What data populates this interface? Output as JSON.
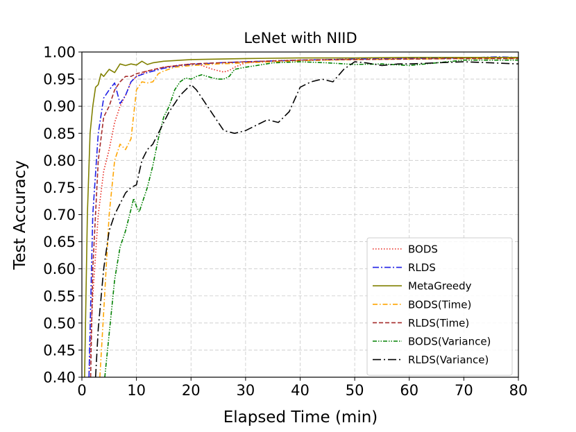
{
  "chart_data": {
    "type": "line",
    "title": "LeNet with NIID",
    "xlabel": "Elapsed Time (min)",
    "ylabel": "Test Accuracy",
    "xlim": [
      0,
      80
    ],
    "ylim": [
      0.4,
      1.0
    ],
    "xticks": [
      0,
      10,
      20,
      30,
      40,
      50,
      60,
      70,
      80
    ],
    "xtick_labels": [
      "0",
      "10",
      "20",
      "30",
      "40",
      "50",
      "60",
      "70",
      "80"
    ],
    "yticks": [
      0.4,
      0.45,
      0.5,
      0.55,
      0.6,
      0.65,
      0.7,
      0.75,
      0.8,
      0.85,
      0.9,
      0.95,
      1.0
    ],
    "ytick_labels": [
      "0.40",
      "0.45",
      "0.50",
      "0.55",
      "0.60",
      "0.65",
      "0.70",
      "0.75",
      "0.80",
      "0.85",
      "0.90",
      "0.95",
      "1.00"
    ],
    "grid": true,
    "legend_position": "bottom-right",
    "series": [
      {
        "name": "BODS",
        "color": "#e8231a",
        "dash": "1.5,2.5",
        "x": [
          1.3,
          2,
          3,
          4,
          5,
          6,
          7,
          8,
          9,
          10,
          12,
          15,
          18,
          20,
          22,
          24,
          26,
          27,
          28,
          30,
          35,
          40,
          45,
          50,
          55,
          60,
          65,
          70,
          75,
          80
        ],
        "y": [
          0.4,
          0.55,
          0.7,
          0.78,
          0.82,
          0.87,
          0.9,
          0.92,
          0.945,
          0.955,
          0.965,
          0.972,
          0.976,
          0.978,
          0.975,
          0.968,
          0.963,
          0.966,
          0.972,
          0.98,
          0.984,
          0.985,
          0.986,
          0.987,
          0.988,
          0.988,
          0.988,
          0.989,
          0.989,
          0.989
        ]
      },
      {
        "name": "RLDS",
        "color": "#1f1fe6",
        "dash": "9,3,2,3",
        "x": [
          1.3,
          2,
          3,
          4,
          5,
          6,
          7,
          8,
          9,
          10,
          12,
          15,
          18,
          20,
          25,
          30,
          40,
          50,
          60,
          70,
          76,
          80
        ],
        "y": [
          0.4,
          0.7,
          0.85,
          0.915,
          0.93,
          0.943,
          0.905,
          0.92,
          0.945,
          0.955,
          0.962,
          0.97,
          0.975,
          0.977,
          0.98,
          0.982,
          0.985,
          0.987,
          0.988,
          0.989,
          0.991,
          0.99
        ]
      },
      {
        "name": "MetaGreedy",
        "color": "#808000",
        "dash": "",
        "x": [
          0.5,
          1.0,
          1.5,
          2.0,
          2.5,
          3,
          3.5,
          4,
          5,
          6,
          7,
          8,
          9,
          10,
          11,
          12,
          13,
          15,
          20,
          30,
          40,
          50,
          60,
          70,
          80
        ],
        "y": [
          0.4,
          0.7,
          0.85,
          0.9,
          0.935,
          0.94,
          0.96,
          0.955,
          0.968,
          0.962,
          0.978,
          0.975,
          0.978,
          0.976,
          0.983,
          0.977,
          0.98,
          0.983,
          0.986,
          0.988,
          0.989,
          0.989,
          0.99,
          0.99,
          0.99
        ]
      },
      {
        "name": "BODS(Time)",
        "color": "#ffa500",
        "dash": "7,3,1.5,3",
        "x": [
          3.3,
          4,
          5,
          6,
          7,
          8,
          9,
          10,
          11,
          12,
          13,
          14,
          15,
          17,
          20,
          25,
          30,
          40,
          50,
          60,
          70,
          80
        ],
        "y": [
          0.4,
          0.52,
          0.7,
          0.8,
          0.83,
          0.82,
          0.84,
          0.93,
          0.945,
          0.943,
          0.945,
          0.96,
          0.965,
          0.972,
          0.975,
          0.978,
          0.98,
          0.984,
          0.986,
          0.987,
          0.988,
          0.988
        ]
      },
      {
        "name": "RLDS(Time)",
        "color": "#a52a2a",
        "dash": "6,3",
        "x": [
          1.6,
          2,
          3,
          4,
          5,
          6,
          7,
          8,
          9,
          10,
          12,
          15,
          20,
          25,
          30,
          40,
          50,
          60,
          70,
          80
        ],
        "y": [
          0.4,
          0.6,
          0.8,
          0.88,
          0.9,
          0.93,
          0.945,
          0.955,
          0.955,
          0.96,
          0.965,
          0.972,
          0.978,
          0.98,
          0.982,
          0.985,
          0.986,
          0.987,
          0.988,
          0.988
        ]
      },
      {
        "name": "BODS(Variance)",
        "color": "#008000",
        "dash": "6,2,1.5,2,1.5,2",
        "x": [
          4.2,
          5,
          6,
          7,
          8,
          9,
          9.5,
          10,
          10.5,
          11,
          12,
          13,
          14,
          15,
          16,
          17,
          18,
          19,
          20,
          21,
          22,
          23,
          24,
          25,
          26,
          27,
          28,
          30,
          32,
          35,
          40,
          45,
          50,
          55,
          60,
          65,
          70,
          75,
          80
        ],
        "y": [
          0.4,
          0.48,
          0.58,
          0.64,
          0.67,
          0.71,
          0.73,
          0.715,
          0.705,
          0.72,
          0.75,
          0.79,
          0.84,
          0.88,
          0.9,
          0.93,
          0.945,
          0.952,
          0.95,
          0.955,
          0.958,
          0.955,
          0.952,
          0.95,
          0.95,
          0.955,
          0.968,
          0.972,
          0.975,
          0.98,
          0.982,
          0.98,
          0.977,
          0.978,
          0.975,
          0.98,
          0.985,
          0.985,
          0.985
        ]
      },
      {
        "name": "RLDS(Variance)",
        "color": "#000000",
        "dash": "12,4,2,4",
        "x": [
          2.5,
          3,
          4,
          5,
          6,
          7,
          8,
          9,
          10,
          11,
          12,
          13,
          14,
          15,
          16,
          17,
          18,
          19,
          20,
          21,
          22,
          24,
          26,
          28,
          30,
          32,
          34,
          36,
          38,
          40,
          42,
          44,
          46,
          48,
          50,
          52,
          55,
          58,
          60,
          65,
          70,
          75,
          80
        ],
        "y": [
          0.4,
          0.49,
          0.6,
          0.67,
          0.7,
          0.72,
          0.74,
          0.75,
          0.755,
          0.8,
          0.82,
          0.83,
          0.85,
          0.87,
          0.89,
          0.905,
          0.92,
          0.93,
          0.94,
          0.93,
          0.915,
          0.885,
          0.855,
          0.85,
          0.855,
          0.865,
          0.875,
          0.87,
          0.89,
          0.935,
          0.945,
          0.95,
          0.945,
          0.968,
          0.982,
          0.98,
          0.975,
          0.978,
          0.978,
          0.98,
          0.982,
          0.98,
          0.978
        ]
      }
    ]
  }
}
